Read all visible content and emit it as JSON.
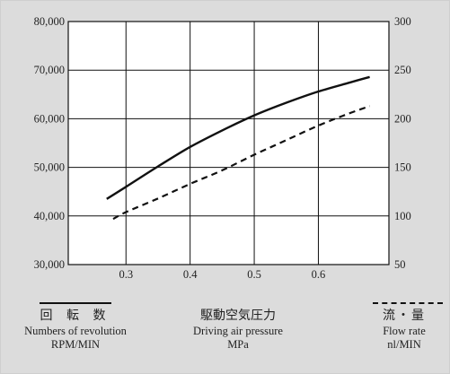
{
  "chart_data": {
    "type": "line",
    "x": {
      "ticks": [
        0.3,
        0.4,
        0.5,
        0.6
      ],
      "range": [
        0.21,
        0.71
      ]
    },
    "y_left": {
      "ticks": [
        "30,000",
        "40,000",
        "50,000",
        "60,000",
        "70,000",
        "80,000"
      ],
      "range": [
        30000,
        80000
      ]
    },
    "y_right": {
      "ticks": [
        "50",
        "100",
        "150",
        "200",
        "250",
        "300"
      ],
      "range": [
        50,
        300
      ]
    },
    "grid": true,
    "series": [
      {
        "name": "Numbers of revolution",
        "axis": "left",
        "style": "solid",
        "color": "#111111",
        "points": [
          [
            0.27,
            43500
          ],
          [
            0.3,
            46000
          ],
          [
            0.35,
            50200
          ],
          [
            0.4,
            54200
          ],
          [
            0.45,
            57600
          ],
          [
            0.5,
            60700
          ],
          [
            0.55,
            63300
          ],
          [
            0.6,
            65600
          ],
          [
            0.65,
            67500
          ],
          [
            0.68,
            68600
          ]
        ]
      },
      {
        "name": "Flow rate",
        "axis": "right",
        "style": "dashed",
        "color": "#111111",
        "points": [
          [
            0.28,
            97
          ],
          [
            0.3,
            104
          ],
          [
            0.35,
            118
          ],
          [
            0.4,
            133
          ],
          [
            0.45,
            147
          ],
          [
            0.5,
            163
          ],
          [
            0.55,
            178
          ],
          [
            0.6,
            193
          ],
          [
            0.65,
            206
          ],
          [
            0.68,
            213
          ]
        ]
      }
    ]
  },
  "legend": {
    "left": {
      "jp": "回 転 数",
      "en": "Numbers of revolution",
      "unit": "RPM/MIN"
    },
    "center": {
      "jp": "駆動空気圧力",
      "en": "Driving air pressure",
      "unit": "MPa"
    },
    "right": {
      "jp": "流・量",
      "en": "Flow rate",
      "unit": "nl/MIN"
    }
  }
}
